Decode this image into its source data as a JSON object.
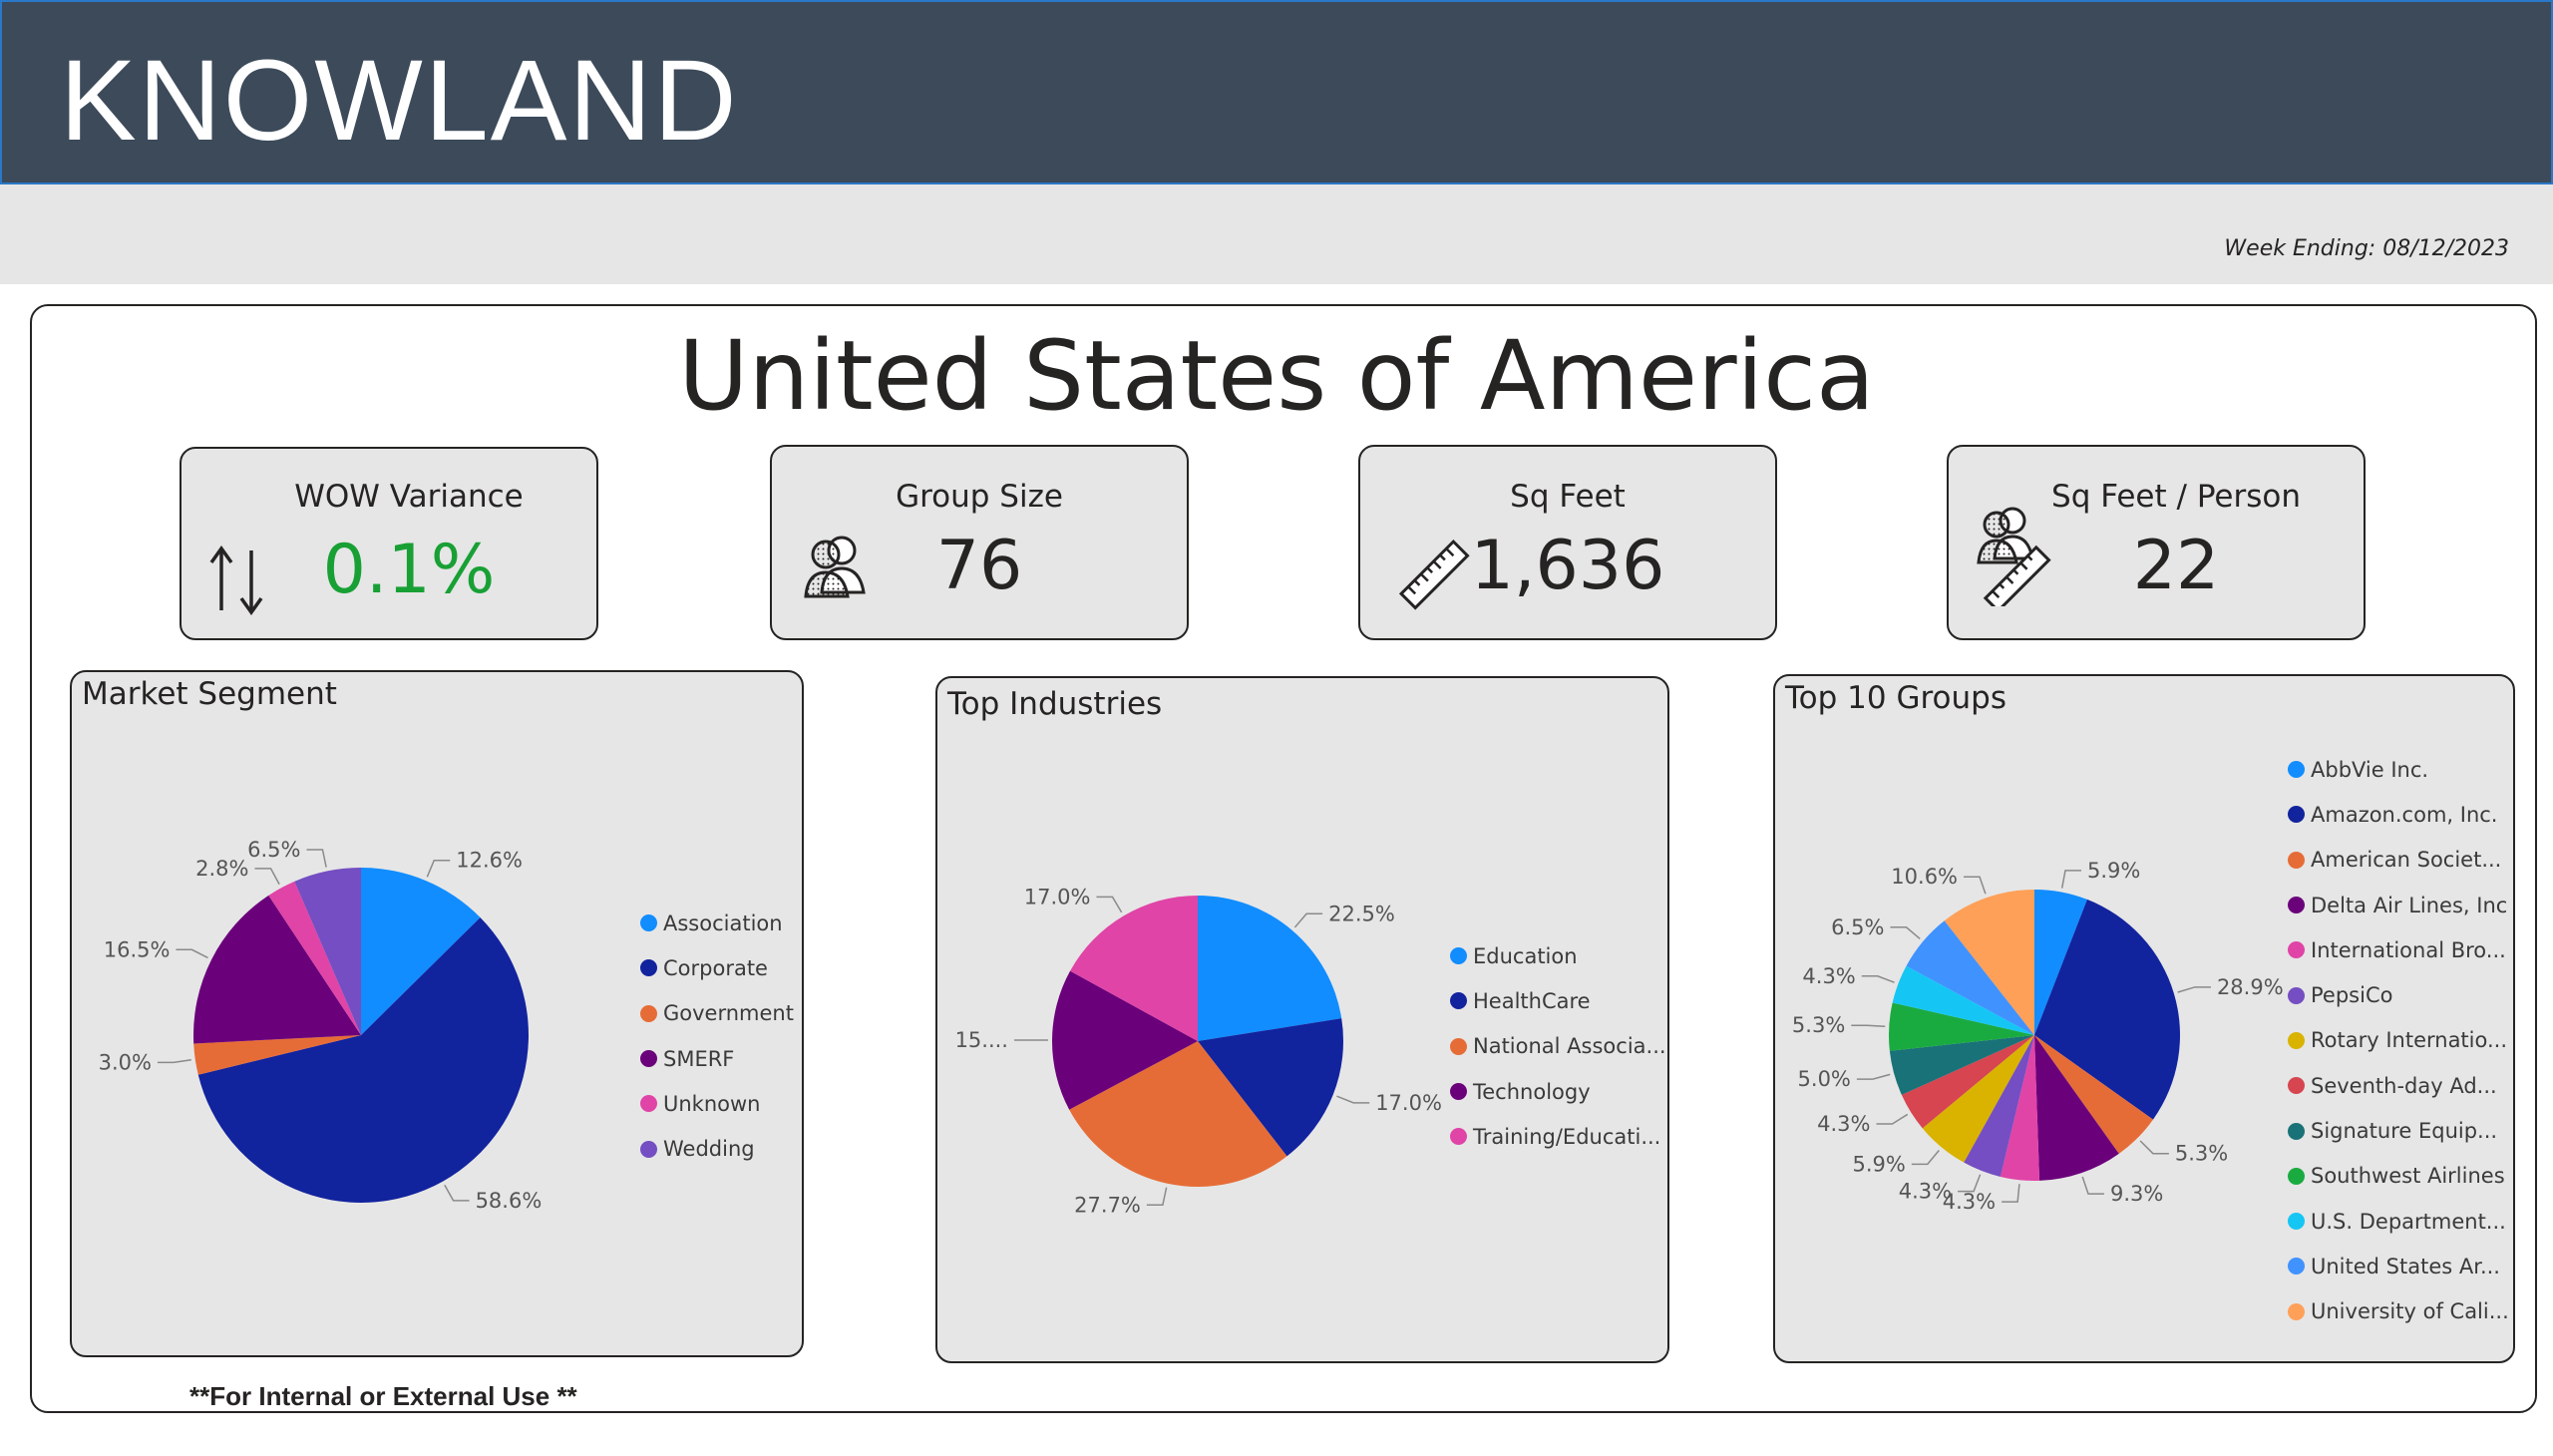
{
  "header": {
    "brand": "KNOWLAND",
    "week_ending": "Week Ending: 08/12/2023"
  },
  "country_title": "United States of America",
  "kpis": {
    "wow": {
      "title": "WOW Variance",
      "value": "0.1%",
      "icon": "up-down-arrows-icon",
      "color": "#18a035"
    },
    "group_size": {
      "title": "Group Size",
      "value": "76",
      "icon": "people-icon"
    },
    "sq_feet": {
      "title": "Sq Feet",
      "value": "1,636",
      "icon": "ruler-icon"
    },
    "sq_feet_person": {
      "title": "Sq Feet / Person",
      "value": "22",
      "icon": "people-ruler-icon"
    }
  },
  "panels": {
    "market_segment": {
      "title": "Market Segment"
    },
    "top_industries": {
      "title": "Top Industries"
    },
    "top_groups": {
      "title": "Top 10 Groups"
    }
  },
  "footnote": "**For Internal or External Use **",
  "chart_data": [
    {
      "type": "pie",
      "title": "Market Segment",
      "legend_position": "right",
      "slices": [
        {
          "label": "Association",
          "value": 12.6,
          "display": "12.6%",
          "color": "#118dff"
        },
        {
          "label": "Corporate",
          "value": 58.6,
          "display": "58.6%",
          "color": "#12239e"
        },
        {
          "label": "Government",
          "value": 3.0,
          "display": "3.0%",
          "color": "#e66c37"
        },
        {
          "label": "SMERF",
          "value": 16.5,
          "display": "16.5%",
          "color": "#6b007b"
        },
        {
          "label": "Unknown",
          "value": 2.8,
          "display": "2.8%",
          "color": "#e044a7"
        },
        {
          "label": "Wedding",
          "value": 6.5,
          "display": "6.5%",
          "color": "#744ec2"
        }
      ]
    },
    {
      "type": "pie",
      "title": "Top Industries",
      "legend_position": "right",
      "slices": [
        {
          "label": "Education",
          "value": 22.5,
          "display": "22.5%",
          "color": "#118dff"
        },
        {
          "label": "HealthCare",
          "value": 17.0,
          "display": "17.0%",
          "color": "#12239e"
        },
        {
          "label": "National Associa...",
          "value": 27.7,
          "display": "27.7%",
          "color": "#e66c37"
        },
        {
          "label": "Technology",
          "value": 15.8,
          "display": "15....",
          "color": "#6b007b"
        },
        {
          "label": "Training/Educati...",
          "value": 17.0,
          "display": "17.0%",
          "color": "#e044a7"
        }
      ]
    },
    {
      "type": "pie",
      "title": "Top 10 Groups",
      "legend_position": "right",
      "slices": [
        {
          "label": "AbbVie Inc.",
          "value": 5.9,
          "display": "5.9%",
          "color": "#118dff"
        },
        {
          "label": "Amazon.com, Inc.",
          "value": 28.9,
          "display": "28.9%",
          "color": "#12239e"
        },
        {
          "label": "American Societ...",
          "value": 5.3,
          "display": "5.3%",
          "color": "#e66c37"
        },
        {
          "label": "Delta Air Lines, Inc",
          "value": 9.3,
          "display": "9.3%",
          "color": "#6b007b"
        },
        {
          "label": "International Bro...",
          "value": 4.3,
          "display": "4.3%",
          "color": "#e044a7"
        },
        {
          "label": "PepsiCo",
          "value": 4.3,
          "display": "4.3%",
          "color": "#744ec2"
        },
        {
          "label": "Rotary Internatio...",
          "value": 5.9,
          "display": "5.9%",
          "color": "#d9b300"
        },
        {
          "label": "Seventh-day Ad...",
          "value": 4.3,
          "display": "4.3%",
          "color": "#d64550"
        },
        {
          "label": "Signature Equip...",
          "value": 5.0,
          "display": "5.0%",
          "color": "#197278"
        },
        {
          "label": "Southwest Airlines",
          "value": 5.3,
          "display": "5.3%",
          "color": "#1aab40"
        },
        {
          "label": "U.S. Department...",
          "value": 4.3,
          "display": "4.3%",
          "color": "#15c6f4"
        },
        {
          "label": "United States Ar...",
          "value": 6.5,
          "display": "6.5%",
          "color": "#4092ff"
        },
        {
          "label": "University of Cali...",
          "value": 10.6,
          "display": "10.6%",
          "color": "#ffa058"
        }
      ]
    }
  ]
}
